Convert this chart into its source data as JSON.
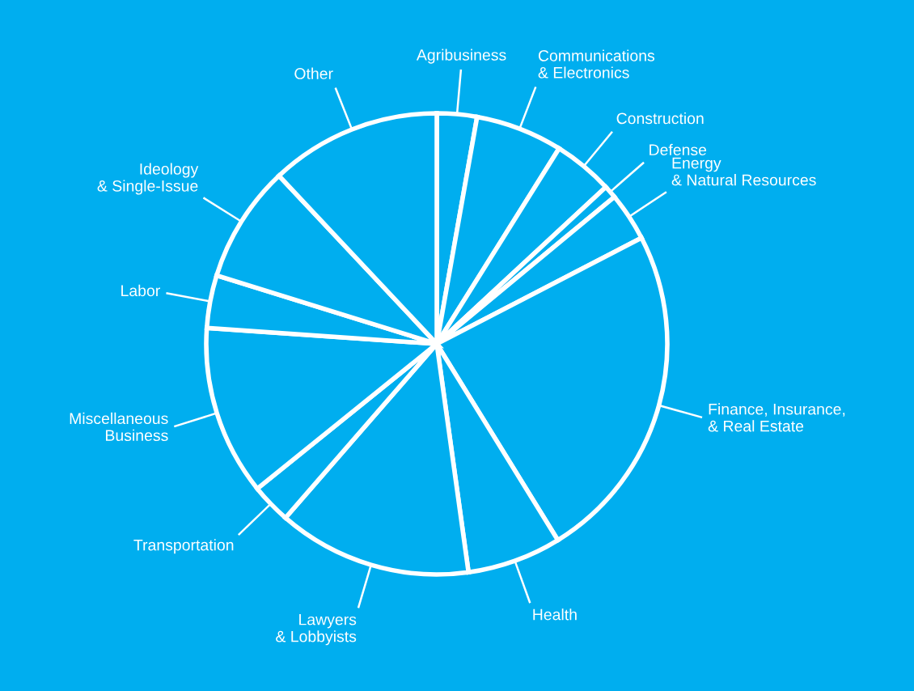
{
  "chart_data": {
    "type": "pie",
    "categories": [
      "Agribusiness",
      "Communications\n& Electronics",
      "Construction",
      "Defense",
      "Energy\n& Natural Resources",
      "Finance, Insurance,\n& Real Estate",
      "Health",
      "Lawyers\n& Lobbyists",
      "Transportation",
      "Miscellaneous\nBusiness",
      "Labor",
      "Ideology\n& Single-Issue",
      "Other"
    ],
    "values": [
      2.8,
      6.1,
      4.2,
      0.9,
      3.4,
      23.8,
      6.6,
      13.6,
      2.8,
      11.9,
      3.7,
      8.2,
      12.0
    ],
    "colors": [
      "#00aeef",
      "#00aeef",
      "#00aeef",
      "#00aeef",
      "#00aeef",
      "#00aeef",
      "#00aeef",
      "#00aeef",
      "#00aeef",
      "#00aeef",
      "#00aeef",
      "#00aeef",
      "#00aeef"
    ]
  }
}
